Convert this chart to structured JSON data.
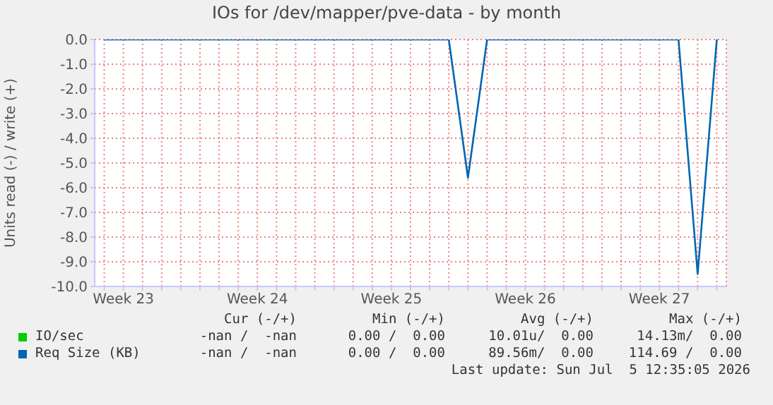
{
  "chart_data": {
    "type": "line",
    "title": "IOs for /dev/mapper/pve-data - by month",
    "ylabel": "Units read (-) / write (+)",
    "categories": [
      null,
      "Week 23",
      null,
      null,
      null,
      null,
      null,
      null,
      "Week 24",
      null,
      null,
      null,
      null,
      null,
      null,
      "Week 25",
      null,
      null,
      null,
      null,
      null,
      null,
      "Week 26",
      null,
      null,
      null,
      null,
      null,
      null,
      "Week 27",
      null,
      null,
      null
    ],
    "series": [
      {
        "name": "IO/sec",
        "color": "#00cc00",
        "values": [
          null,
          null,
          null,
          null,
          null,
          null,
          null,
          null,
          null,
          null,
          null,
          null,
          null,
          null,
          null,
          null,
          null,
          null,
          null,
          null,
          null,
          null,
          null,
          null,
          null,
          null,
          null,
          null,
          null,
          null,
          null,
          null,
          null
        ]
      },
      {
        "name": "Req Size (KB)",
        "color": "#0066b3",
        "values": [
          0,
          0,
          0,
          0,
          0,
          0,
          0,
          0,
          0,
          0,
          0,
          0,
          0,
          0,
          0,
          0,
          0,
          0,
          0,
          -5.6,
          0,
          0,
          0,
          0,
          0,
          0,
          0,
          0,
          0,
          0,
          0,
          -9.5,
          0
        ]
      }
    ],
    "ylim": [
      -10,
      0
    ],
    "yticks": [
      {
        "value": 0,
        "label": "0.0"
      },
      {
        "value": -1,
        "label": "-1.0"
      },
      {
        "value": -2,
        "label": "-2.0"
      },
      {
        "value": -3,
        "label": "-3.0"
      },
      {
        "value": -4,
        "label": "-4.0"
      },
      {
        "value": -5,
        "label": "-5.0"
      },
      {
        "value": -6,
        "label": "-6.0"
      },
      {
        "value": -7,
        "label": "-7.0"
      },
      {
        "value": -8,
        "label": "-8.0"
      },
      {
        "value": -9,
        "label": "-9.0"
      },
      {
        "value": -10,
        "label": "-10.0"
      }
    ],
    "grid": true,
    "legend": "bottom",
    "marker": "none",
    "line_style": "solid",
    "annotations": [
      "Cur (-/+)",
      "Min (-/+)",
      "Avg (-/+)",
      "Max (-/+)",
      "-nan /  -nan",
      "0.00 /  0.00",
      "10.01u/  0.00",
      "14.13m/  0.00",
      "-nan /  -nan",
      "0.00 /  0.00",
      "89.56m/  0.00",
      "114.69 /  0.00",
      "Last update: Sun Jul  5 12:35:05 2026"
    ]
  }
}
